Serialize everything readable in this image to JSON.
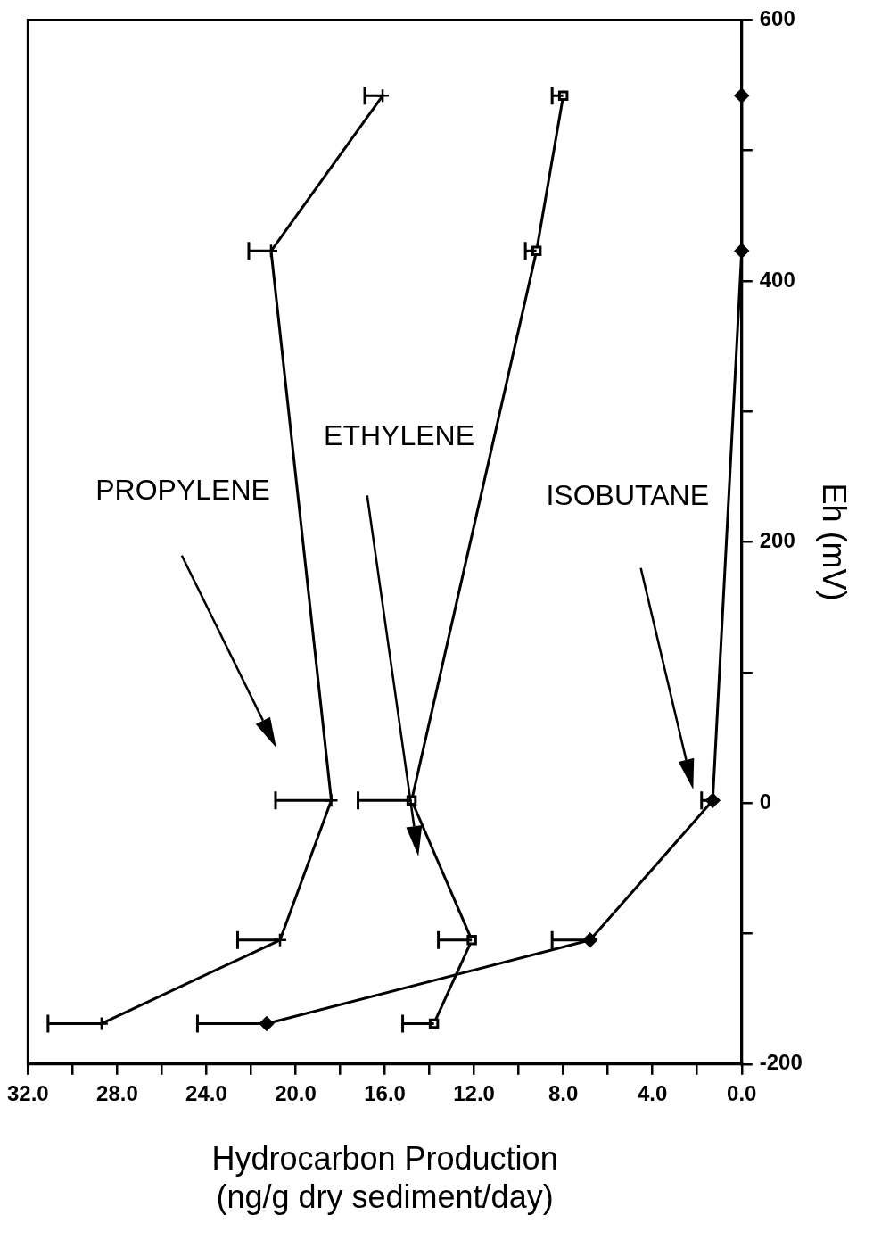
{
  "chart_data": {
    "type": "line",
    "xlabel": "Hydrocarbon Production\n(ng/g dry sediment/day)",
    "ylabel": "Eh (mV)",
    "xlim": [
      32,
      0
    ],
    "xticks": [
      {
        "value": 32,
        "label": "32.0"
      },
      {
        "value": 30,
        "label": null
      },
      {
        "value": 28,
        "label": "28.0"
      },
      {
        "value": 26,
        "label": null
      },
      {
        "value": 24,
        "label": "24.0"
      },
      {
        "value": 22,
        "label": null
      },
      {
        "value": 20,
        "label": "20.0"
      },
      {
        "value": 18,
        "label": null
      },
      {
        "value": 16,
        "label": "16.0"
      },
      {
        "value": 14,
        "label": null
      },
      {
        "value": 12,
        "label": "12.0"
      },
      {
        "value": 10,
        "label": null
      },
      {
        "value": 8,
        "label": "8.0"
      },
      {
        "value": 6,
        "label": null
      },
      {
        "value": 4,
        "label": "4.0"
      },
      {
        "value": 2,
        "label": null
      },
      {
        "value": 0,
        "label": "0.0"
      }
    ],
    "ylim": [
      -200,
      600
    ],
    "yticks": [
      -200,
      {
        "value": -100,
        "label": null
      },
      0,
      {
        "value": 100,
        "label": null
      },
      200,
      {
        "value": 300,
        "label": null
      },
      400,
      {
        "value": 500,
        "label": null
      },
      600
    ],
    "grid": false,
    "legend": false,
    "line_style": "solid",
    "series": [
      {
        "name": "PROPYLENE",
        "color": "#000000",
        "marker": "cross",
        "x": [
          28.7,
          20.7,
          18.4,
          21.1,
          16.1
        ],
        "values": [
          -169,
          -105,
          2,
          423,
          542
        ],
        "xerrors": [
          [
            28.7,
            31.1
          ],
          [
            20.7,
            22.6
          ],
          [
            18.4,
            20.9
          ],
          [
            21.1,
            22.1
          ],
          [
            16.1,
            16.9
          ]
        ]
      },
      {
        "name": "ETHYLENE",
        "color": "#000000",
        "marker": "square",
        "x": [
          13.8,
          12.1,
          14.8,
          9.2,
          8.0
        ],
        "values": [
          -169,
          -105,
          2,
          423,
          542
        ],
        "xerrors": [
          [
            13.8,
            15.2
          ],
          [
            12.1,
            13.6
          ],
          [
            14.8,
            17.2
          ],
          [
            9.2,
            9.7
          ],
          [
            8.0,
            8.5
          ]
        ]
      },
      {
        "name": "ISOBUTANE",
        "color": "#000000",
        "marker": "diamond",
        "x": [
          21.3,
          6.8,
          1.3,
          0,
          0
        ],
        "values": [
          -169,
          -105,
          2,
          423,
          542
        ],
        "xerrors": [
          [
            21.3,
            24.4
          ],
          [
            6.8,
            8.5
          ],
          [
            1.3,
            1.8
          ],
          null,
          null
        ]
      }
    ]
  }
}
